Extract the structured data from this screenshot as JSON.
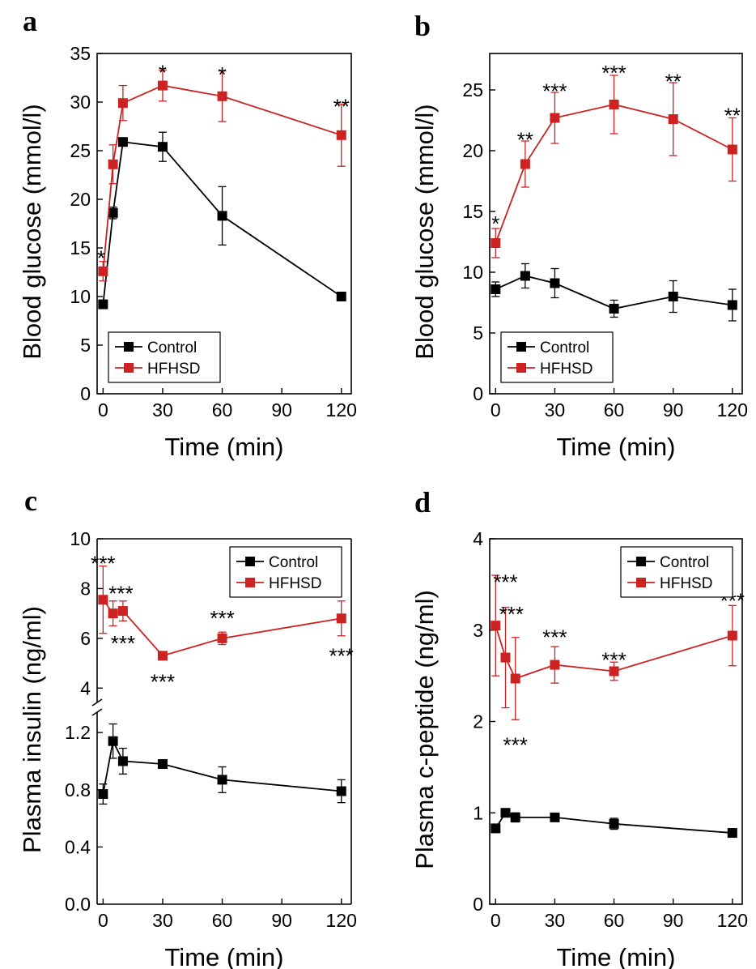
{
  "chart_data": [
    {
      "type": "line",
      "panel": "a",
      "xlabel": "Time (min)",
      "ylabel": "Blood glucose (mmol/l)",
      "xlim": [
        -3,
        125
      ],
      "ylim": [
        0,
        35
      ],
      "xticks": [
        0,
        30,
        60,
        90,
        120
      ],
      "xtick_labels": [
        "0",
        "30",
        "60",
        "90",
        "120"
      ],
      "yticks": [
        0,
        5,
        10,
        15,
        20,
        25,
        30,
        35
      ],
      "ytick_labels": [
        "0",
        "5",
        "10",
        "15",
        "20",
        "25",
        "30",
        "35"
      ],
      "legend_position": "bottom-left",
      "series": [
        {
          "name": "Control",
          "color": "#000000",
          "x": [
            0,
            5,
            10,
            30,
            60,
            120
          ],
          "values": [
            9.2,
            18.6,
            25.9,
            25.4,
            18.3,
            10.0
          ],
          "errors": [
            0.3,
            0.6,
            0.4,
            1.5,
            3.0,
            0.3
          ]
        },
        {
          "name": "HFHSD",
          "color": "#cc2222",
          "x": [
            0,
            5,
            10,
            30,
            60,
            120
          ],
          "values": [
            12.6,
            23.6,
            29.9,
            31.7,
            30.6,
            26.6
          ],
          "errors": [
            1.0,
            2.0,
            1.8,
            1.6,
            2.6,
            3.2
          ]
        }
      ],
      "annotations": [
        {
          "text": "*",
          "x": -1,
          "y": 14.2
        },
        {
          "text": "*",
          "x": 30,
          "y": 33.3
        },
        {
          "text": "*",
          "x": 60,
          "y": 33.1
        },
        {
          "text": "**",
          "x": 120,
          "y": 29.8
        }
      ]
    },
    {
      "type": "line",
      "panel": "b",
      "xlabel": "Time (min)",
      "ylabel": "Blood glucose (mmol/l)",
      "xlim": [
        -3,
        125
      ],
      "ylim": [
        0,
        28
      ],
      "xticks": [
        0,
        30,
        60,
        90,
        120
      ],
      "xtick_labels": [
        "0",
        "30",
        "60",
        "90",
        "120"
      ],
      "yticks": [
        0,
        5,
        10,
        15,
        20,
        25
      ],
      "ytick_labels": [
        "0",
        "5",
        "10",
        "15",
        "20",
        "25"
      ],
      "legend_position": "bottom-left",
      "series": [
        {
          "name": "Control",
          "color": "#000000",
          "x": [
            0,
            15,
            30,
            60,
            90,
            120
          ],
          "values": [
            8.6,
            9.7,
            9.1,
            7.0,
            8.0,
            7.3
          ],
          "errors": [
            0.6,
            1.0,
            1.2,
            0.7,
            1.3,
            1.3
          ]
        },
        {
          "name": "HFHSD",
          "color": "#cc2222",
          "x": [
            0,
            15,
            30,
            60,
            90,
            120
          ],
          "values": [
            12.4,
            18.9,
            22.7,
            23.8,
            22.6,
            20.1
          ],
          "errors": [
            1.2,
            1.9,
            2.1,
            2.4,
            3.0,
            2.6
          ]
        }
      ],
      "annotations": [
        {
          "text": "*",
          "x": 0,
          "y": 14.2
        },
        {
          "text": "**",
          "x": 15,
          "y": 21.1
        },
        {
          "text": "***",
          "x": 30,
          "y": 25.1
        },
        {
          "text": "***",
          "x": 60,
          "y": 26.6
        },
        {
          "text": "**",
          "x": 90,
          "y": 25.9
        },
        {
          "text": "**",
          "x": 120,
          "y": 23.1
        }
      ]
    },
    {
      "type": "line",
      "panel": "c",
      "xlabel": "Time (min)",
      "ylabel": "Plasma insulin (ng/ml)",
      "broken_y_axis": true,
      "xlim": [
        -3,
        125
      ],
      "ylim_lower": [
        0,
        1.45
      ],
      "ylim_upper": [
        3,
        10
      ],
      "xticks": [
        0,
        30,
        60,
        90,
        120
      ],
      "xtick_labels": [
        "0",
        "30",
        "60",
        "90",
        "120"
      ],
      "yticks_lower": [
        0.0,
        0.4,
        0.8,
        1.2
      ],
      "ytick_labels_lower": [
        "0.0",
        "0.4",
        "0.8",
        "1.2"
      ],
      "yticks_upper": [
        4,
        6,
        8,
        10
      ],
      "ytick_labels_upper": [
        "4",
        "6",
        "8",
        "10"
      ],
      "legend_position": "top-right",
      "series": [
        {
          "name": "Control",
          "color": "#000000",
          "x": [
            0,
            5,
            10,
            30,
            60,
            120
          ],
          "values": [
            0.77,
            1.14,
            1.0,
            0.98,
            0.87,
            0.79
          ],
          "errors": [
            0.07,
            0.12,
            0.09,
            0.03,
            0.09,
            0.08
          ]
        },
        {
          "name": "HFHSD",
          "color": "#cc2222",
          "x": [
            0,
            5,
            10,
            30,
            60,
            120
          ],
          "values": [
            7.55,
            7.0,
            7.1,
            5.3,
            6.0,
            6.8
          ],
          "errors": [
            1.35,
            0.5,
            0.4,
            0.1,
            0.25,
            0.7
          ]
        }
      ],
      "annotations": [
        {
          "text": "***",
          "x": 0,
          "y": 9.1
        },
        {
          "text": "***",
          "x": 9,
          "y": 7.9
        },
        {
          "text": "***",
          "x": 10,
          "y": 5.9
        },
        {
          "text": "***",
          "x": 30,
          "y": 4.35
        },
        {
          "text": "***",
          "x": 60,
          "y": 6.9
        },
        {
          "text": "***",
          "x": 120,
          "y": 5.4
        }
      ]
    },
    {
      "type": "line",
      "panel": "d",
      "xlabel": "Time (min)",
      "ylabel": "Plasma c-peptide (ng/ml)",
      "xlim": [
        -3,
        125
      ],
      "ylim": [
        0,
        4
      ],
      "xticks": [
        0,
        30,
        60,
        90,
        120
      ],
      "xtick_labels": [
        "0",
        "30",
        "60",
        "90",
        "120"
      ],
      "yticks": [
        0,
        1,
        2,
        3,
        4
      ],
      "ytick_labels": [
        "0",
        "1",
        "2",
        "3",
        "4"
      ],
      "legend_position": "top-right",
      "series": [
        {
          "name": "Control",
          "color": "#000000",
          "x": [
            0,
            5,
            10,
            30,
            60,
            120
          ],
          "values": [
            0.83,
            1.0,
            0.95,
            0.95,
            0.88,
            0.78
          ],
          "errors": [
            0.03,
            0.04,
            0.05,
            0.04,
            0.06,
            0.04
          ]
        },
        {
          "name": "HFHSD",
          "color": "#cc2222",
          "x": [
            0,
            5,
            10,
            30,
            60,
            120
          ],
          "values": [
            3.05,
            2.7,
            2.47,
            2.62,
            2.55,
            2.94
          ],
          "errors": [
            0.55,
            0.55,
            0.45,
            0.2,
            0.1,
            0.33
          ]
        }
      ],
      "annotations": [
        {
          "text": "***",
          "x": 5,
          "y": 3.55
        },
        {
          "text": "***",
          "x": 8,
          "y": 3.2
        },
        {
          "text": "***",
          "x": 10,
          "y": 1.77
        },
        {
          "text": "***",
          "x": 30,
          "y": 2.95
        },
        {
          "text": "***",
          "x": 60,
          "y": 2.7
        },
        {
          "text": "***",
          "x": 120,
          "y": 3.35
        }
      ]
    }
  ]
}
